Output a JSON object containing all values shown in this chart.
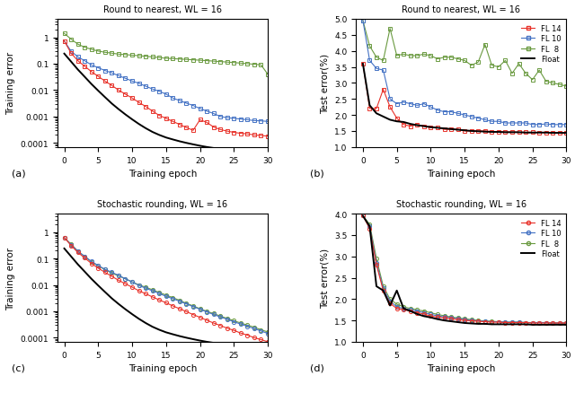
{
  "title_a": "Round to nearest, WL = 16",
  "title_b": "Round to nearest, WL = 16",
  "title_c": "Stochastic rounding, WL = 16",
  "title_d": "Stochastic rounding, WL = 16",
  "xlabel": "Training epoch",
  "ylabel_train": "Training error",
  "ylabel_test": "Test error(%)",
  "colors": {
    "FL14": "#e8322a",
    "FL10": "#4472c4",
    "FL8": "#6a9a40",
    "Float": "#000000"
  },
  "train_a_fl8": [
    1.4,
    0.85,
    0.55,
    0.42,
    0.35,
    0.3,
    0.27,
    0.25,
    0.23,
    0.22,
    0.21,
    0.2,
    0.19,
    0.18,
    0.17,
    0.16,
    0.155,
    0.15,
    0.145,
    0.14,
    0.135,
    0.13,
    0.125,
    0.12,
    0.115,
    0.11,
    0.105,
    0.1,
    0.095,
    0.09,
    0.04
  ],
  "train_a_fl10": [
    0.72,
    0.3,
    0.18,
    0.13,
    0.09,
    0.07,
    0.055,
    0.045,
    0.035,
    0.028,
    0.022,
    0.018,
    0.014,
    0.011,
    0.009,
    0.007,
    0.005,
    0.004,
    0.0032,
    0.0026,
    0.002,
    0.0016,
    0.0013,
    0.001,
    0.0009,
    0.00085,
    0.0008,
    0.00075,
    0.0007,
    0.00068,
    0.00065
  ],
  "train_a_fl14": [
    0.72,
    0.25,
    0.13,
    0.08,
    0.05,
    0.033,
    0.022,
    0.015,
    0.01,
    0.007,
    0.005,
    0.0034,
    0.0024,
    0.0016,
    0.0011,
    0.00085,
    0.00065,
    0.0005,
    0.00038,
    0.0003,
    0.00075,
    0.0006,
    0.0004,
    0.00032,
    0.00028,
    0.00025,
    0.00023,
    0.00022,
    0.0002,
    0.00019,
    0.00018
  ],
  "train_a_float": [
    0.24,
    0.12,
    0.06,
    0.032,
    0.017,
    0.0095,
    0.0054,
    0.0031,
    0.0019,
    0.0012,
    0.00078,
    0.00052,
    0.00036,
    0.00026,
    0.0002,
    0.00016,
    0.000135,
    0.000115,
    0.0001,
    8.8e-05,
    7.8e-05,
    7e-05,
    6.4e-05,
    5.9e-05,
    5.5e-05,
    5.2e-05,
    5e-05,
    4.7e-05,
    4.5e-05,
    4.3e-05,
    4.2e-05
  ],
  "test_b_fl8": [
    4.95,
    4.15,
    3.8,
    3.7,
    4.7,
    3.85,
    3.9,
    3.85,
    3.85,
    3.9,
    3.85,
    3.75,
    3.8,
    3.8,
    3.75,
    3.7,
    3.55,
    3.65,
    4.2,
    3.55,
    3.5,
    3.7,
    3.3,
    3.6,
    3.3,
    3.1,
    3.4,
    3.05,
    3.0,
    2.95,
    2.9
  ],
  "test_b_fl10": [
    4.95,
    3.7,
    3.45,
    3.4,
    2.5,
    2.35,
    2.4,
    2.35,
    2.3,
    2.35,
    2.25,
    2.15,
    2.1,
    2.1,
    2.05,
    2.0,
    1.95,
    1.9,
    1.85,
    1.8,
    1.8,
    1.75,
    1.75,
    1.75,
    1.75,
    1.7,
    1.7,
    1.72,
    1.7,
    1.7,
    1.7
  ],
  "test_b_fl14": [
    3.6,
    2.2,
    2.2,
    2.8,
    2.25,
    1.9,
    1.7,
    1.65,
    1.7,
    1.65,
    1.6,
    1.6,
    1.55,
    1.55,
    1.55,
    1.5,
    1.5,
    1.5,
    1.5,
    1.48,
    1.48,
    1.47,
    1.47,
    1.46,
    1.46,
    1.46,
    1.45,
    1.45,
    1.45,
    1.45,
    1.45
  ],
  "test_b_float": [
    3.6,
    2.3,
    2.05,
    1.95,
    1.85,
    1.8,
    1.78,
    1.72,
    1.68,
    1.65,
    1.62,
    1.6,
    1.58,
    1.56,
    1.54,
    1.52,
    1.5,
    1.49,
    1.48,
    1.47,
    1.47,
    1.46,
    1.46,
    1.46,
    1.45,
    1.45,
    1.45,
    1.45,
    1.44,
    1.44,
    1.44
  ],
  "train_c_fl8": [
    0.62,
    0.35,
    0.19,
    0.12,
    0.075,
    0.052,
    0.038,
    0.028,
    0.022,
    0.017,
    0.013,
    0.01,
    0.0082,
    0.0065,
    0.0052,
    0.0041,
    0.0033,
    0.0026,
    0.002,
    0.0016,
    0.00125,
    0.001,
    0.00082,
    0.00066,
    0.00054,
    0.00044,
    0.00036,
    0.0003,
    0.00025,
    0.0002,
    0.000165
  ],
  "train_c_fl10": [
    0.62,
    0.33,
    0.19,
    0.12,
    0.078,
    0.054,
    0.039,
    0.03,
    0.023,
    0.017,
    0.013,
    0.0095,
    0.0075,
    0.006,
    0.0047,
    0.0037,
    0.003,
    0.0024,
    0.0019,
    0.0015,
    0.0012,
    0.00095,
    0.00076,
    0.00061,
    0.0005,
    0.0004,
    0.00033,
    0.00027,
    0.00022,
    0.00018,
    0.000145
  ],
  "train_c_fl14": [
    0.62,
    0.31,
    0.17,
    0.105,
    0.065,
    0.043,
    0.03,
    0.021,
    0.015,
    0.011,
    0.0082,
    0.006,
    0.0046,
    0.0035,
    0.0027,
    0.0021,
    0.0016,
    0.00125,
    0.00097,
    0.00075,
    0.00059,
    0.00046,
    0.00036,
    0.00029,
    0.00023,
    0.00019,
    0.00015,
    0.000125,
    0.0001,
    8.5e-05,
    7e-05
  ],
  "train_c_float": [
    0.24,
    0.12,
    0.06,
    0.032,
    0.017,
    0.0095,
    0.0054,
    0.0031,
    0.0019,
    0.0012,
    0.00078,
    0.00052,
    0.00036,
    0.00026,
    0.0002,
    0.00016,
    0.000135,
    0.000115,
    0.0001,
    8.8e-05,
    7.8e-05,
    7e-05,
    6.4e-05,
    5.9e-05,
    5.5e-05,
    5.2e-05,
    5e-05,
    4.7e-05,
    4.5e-05,
    4.3e-05,
    4.2e-05
  ],
  "test_d_fl14": [
    3.95,
    3.65,
    2.8,
    2.2,
    1.9,
    1.78,
    1.75,
    1.72,
    1.68,
    1.65,
    1.6,
    1.58,
    1.56,
    1.54,
    1.52,
    1.5,
    1.49,
    1.48,
    1.47,
    1.46,
    1.46,
    1.45,
    1.45,
    1.45,
    1.45,
    1.44,
    1.44,
    1.44,
    1.44,
    1.44,
    1.44
  ],
  "test_d_fl10": [
    3.95,
    3.7,
    2.85,
    2.25,
    1.95,
    1.82,
    1.78,
    1.75,
    1.72,
    1.68,
    1.64,
    1.61,
    1.58,
    1.56,
    1.54,
    1.52,
    1.5,
    1.49,
    1.48,
    1.47,
    1.47,
    1.46,
    1.46,
    1.46,
    1.45,
    1.45,
    1.45,
    1.45,
    1.44,
    1.44,
    1.44
  ],
  "test_d_fl8": [
    3.95,
    3.75,
    2.95,
    2.3,
    2.0,
    1.88,
    1.82,
    1.78,
    1.75,
    1.72,
    1.68,
    1.64,
    1.61,
    1.58,
    1.56,
    1.54,
    1.52,
    1.5,
    1.49,
    1.48,
    1.47,
    1.46,
    1.46,
    1.46,
    1.45,
    1.45,
    1.45,
    1.45,
    1.44,
    1.44,
    1.44
  ],
  "test_d_float": [
    3.95,
    3.7,
    2.3,
    2.2,
    1.85,
    2.2,
    1.78,
    1.72,
    1.65,
    1.6,
    1.57,
    1.53,
    1.5,
    1.48,
    1.46,
    1.44,
    1.43,
    1.42,
    1.42,
    1.41,
    1.41,
    1.41,
    1.41,
    1.41,
    1.41,
    1.4,
    1.4,
    1.4,
    1.4,
    1.4,
    1.4
  ]
}
